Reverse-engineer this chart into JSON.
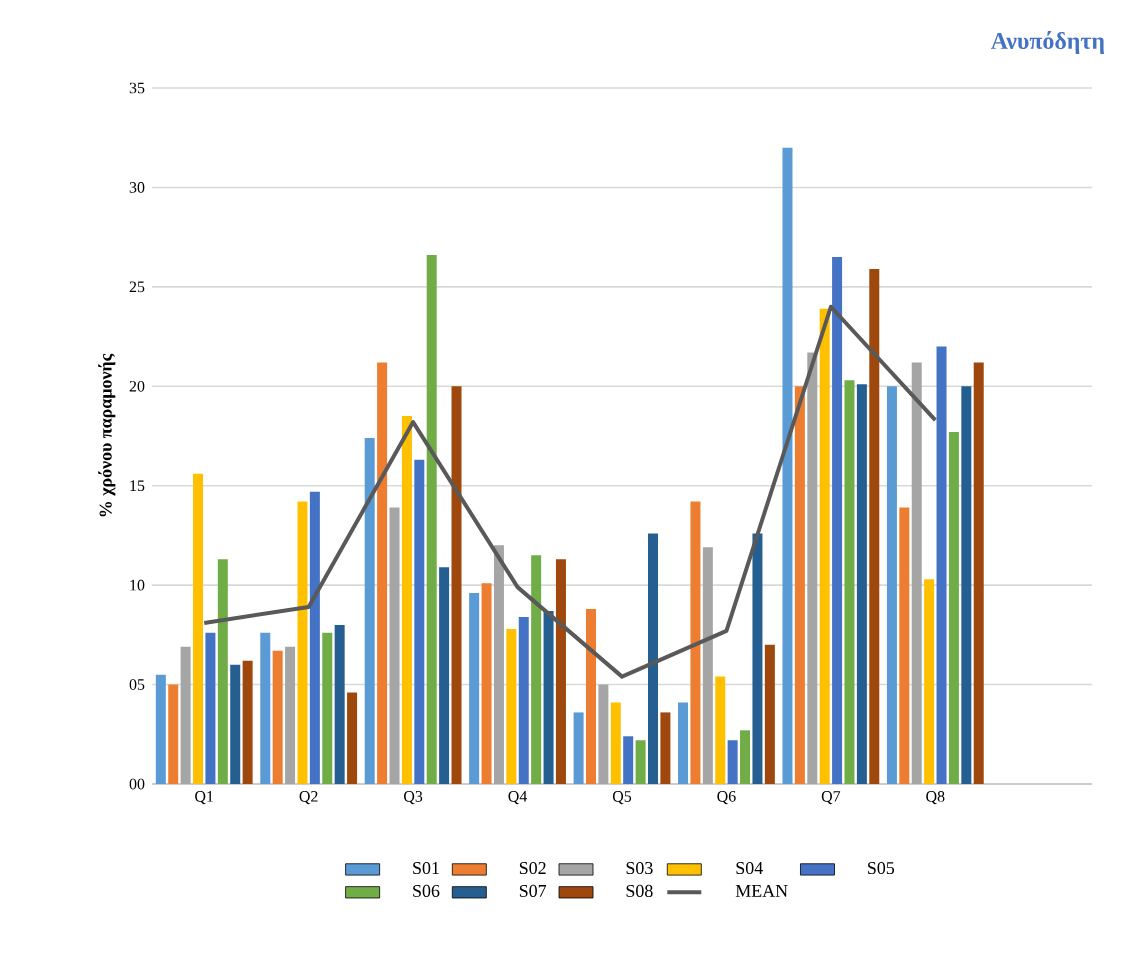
{
  "chart_data": {
    "type": "bar",
    "title": "Ανυπόδητη",
    "ylabel": "% χρόνου παραμονής",
    "categories": [
      "Q1",
      "Q2",
      "Q3",
      "Q4",
      "Q5",
      "Q6",
      "Q7",
      "Q8",
      null
    ],
    "series": [
      {
        "name": "S01",
        "color": "#5b9bd5",
        "values": [
          5.5,
          7.6,
          17.4,
          9.6,
          3.6,
          4.1,
          32.0,
          20.0,
          null
        ]
      },
      {
        "name": "S02",
        "color": "#ed7d31",
        "values": [
          5.0,
          6.7,
          21.2,
          10.1,
          8.8,
          14.2,
          20.0,
          13.9,
          null
        ]
      },
      {
        "name": "S03",
        "color": "#a5a5a5",
        "values": [
          6.9,
          6.9,
          13.9,
          12.0,
          5.0,
          11.9,
          21.7,
          21.2,
          null
        ]
      },
      {
        "name": "S04",
        "color": "#ffc000",
        "values": [
          15.6,
          14.2,
          18.5,
          7.8,
          4.1,
          5.4,
          23.9,
          10.3,
          null
        ]
      },
      {
        "name": "S05",
        "color": "#4472c4",
        "values": [
          7.6,
          14.7,
          16.3,
          8.4,
          2.4,
          2.2,
          26.5,
          22.0,
          null
        ]
      },
      {
        "name": "S06",
        "color": "#70ad47",
        "values": [
          11.3,
          7.6,
          26.6,
          11.5,
          2.2,
          2.7,
          20.3,
          17.7,
          null
        ]
      },
      {
        "name": "S07",
        "color": "#255e91",
        "values": [
          6.0,
          8.0,
          10.9,
          8.7,
          12.6,
          12.6,
          20.1,
          20.0,
          null
        ]
      },
      {
        "name": "S08",
        "color": "#9e480e",
        "values": [
          6.2,
          4.6,
          20.0,
          11.3,
          3.6,
          7.0,
          25.9,
          21.2,
          null
        ]
      },
      {
        "name": "MEAN",
        "color": "#595959",
        "type": "line",
        "marker": "none",
        "values": [
          8.1,
          8.9,
          18.2,
          9.9,
          5.4,
          7.7,
          24.0,
          18.3,
          null
        ]
      }
    ],
    "ylim": [
      0,
      35
    ],
    "yticks": [
      {
        "value": 0,
        "label": "00"
      },
      {
        "value": 5,
        "label": "05"
      },
      10,
      15,
      20,
      25,
      30,
      35
    ],
    "grid": "y",
    "legend": "bottom"
  }
}
